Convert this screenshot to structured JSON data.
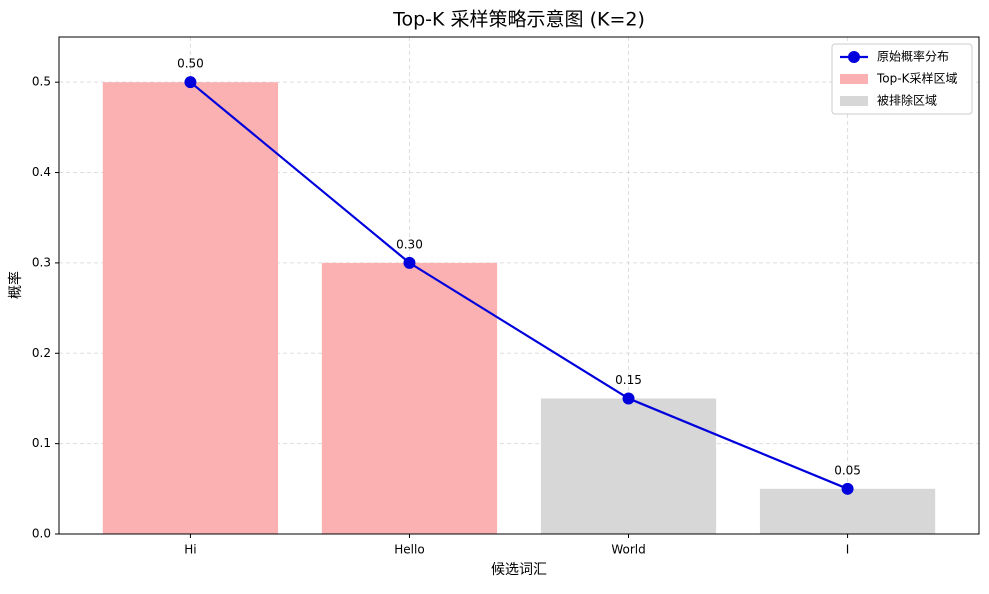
{
  "chart_data": {
    "type": "bar",
    "title": "Top-K 采样策略示意图 (K=2)",
    "xlabel": "候选词汇",
    "ylabel": "概率",
    "categories": [
      "Hi",
      "Hello",
      "World",
      "I"
    ],
    "series": [
      {
        "name": "原始概率分布",
        "type": "line",
        "color": "#0000dd",
        "values": [
          0.5,
          0.3,
          0.15,
          0.05
        ],
        "value_labels": [
          "0.50",
          "0.30",
          "0.15",
          "0.05"
        ]
      },
      {
        "name": "Top-K采样区域",
        "type": "bar",
        "color": "#fbb1b1",
        "values": [
          0.5,
          0.3,
          null,
          null
        ]
      },
      {
        "name": "被排除区域",
        "type": "bar",
        "color": "#d7d7d7",
        "values": [
          null,
          null,
          0.15,
          0.05
        ]
      }
    ],
    "ylim": [
      0,
      0.55
    ],
    "yticks": [
      {
        "value": 0,
        "label": "0.0"
      },
      0.1,
      0.2,
      0.3,
      0.4,
      0.5
    ],
    "grid": true,
    "legend": "upper right"
  }
}
